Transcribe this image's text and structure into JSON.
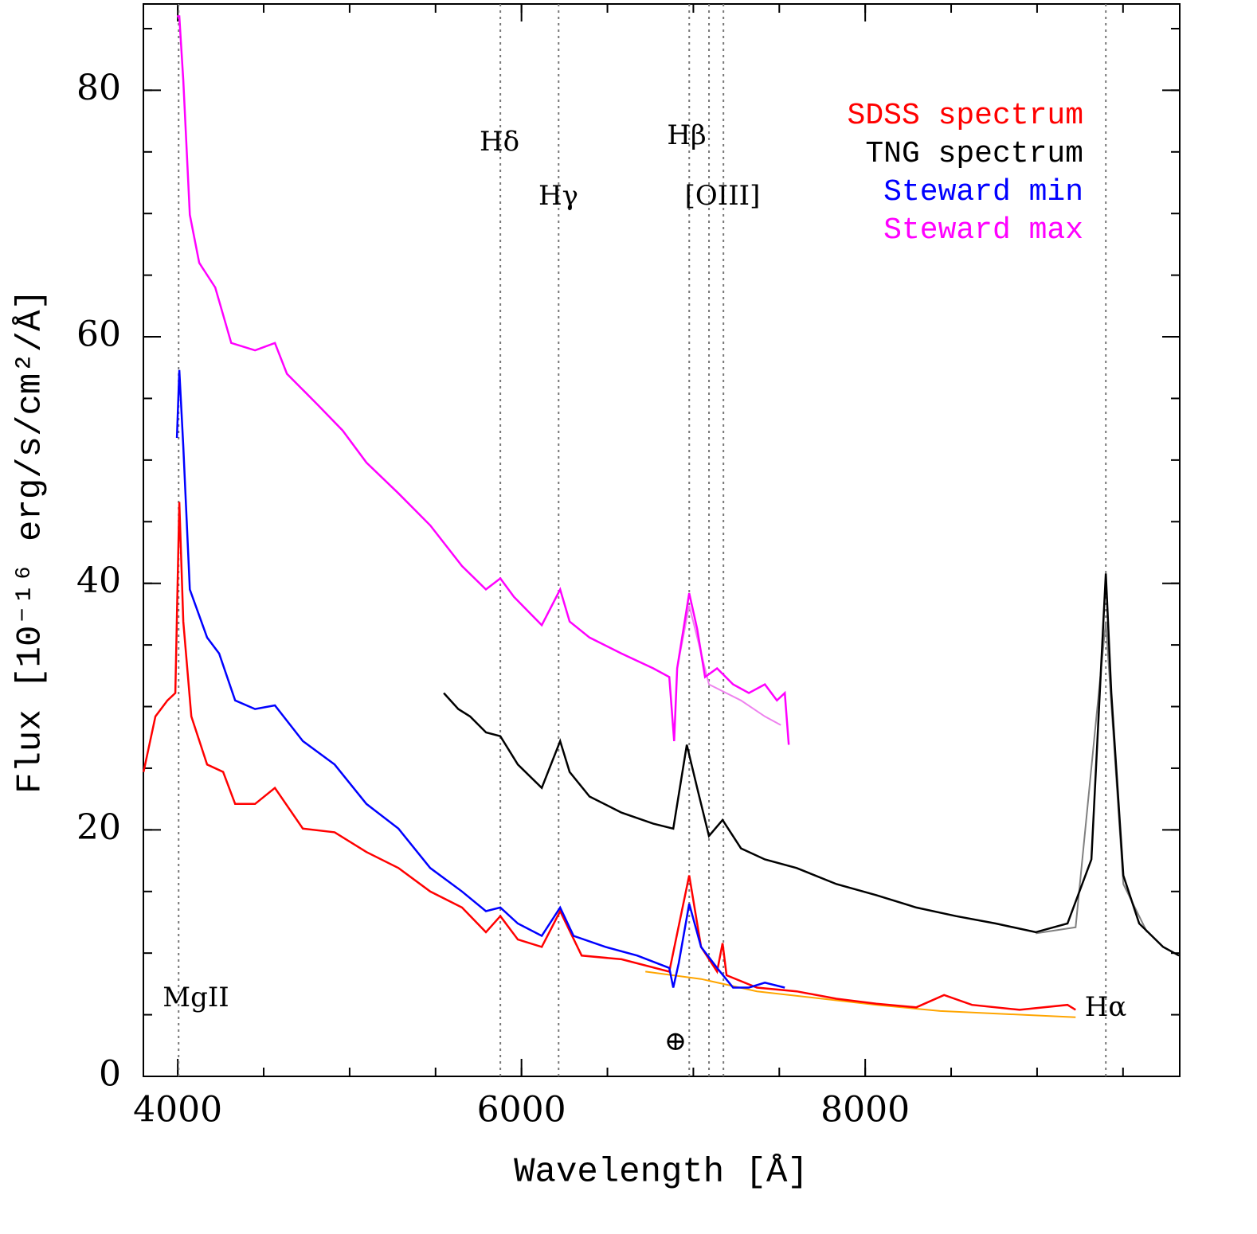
{
  "chart_data": {
    "type": "line",
    "xlabel": "Wavelength [Å]",
    "ylabel": "Flux [10⁻¹⁶ erg/s/cm²/Å]",
    "xlim": [
      3800,
      9830
    ],
    "ylim": [
      0,
      87
    ],
    "xticks": [
      4000,
      6000,
      8000
    ],
    "yticks": [
      0,
      20,
      40,
      60,
      80
    ],
    "minor_divisions": 4,
    "legend": "upper right",
    "series": [
      {
        "name": "SDSS spectrum",
        "color": "#ff0000",
        "x": [
          3801,
          3870,
          3940,
          3986,
          4009,
          4032,
          4079,
          4171,
          4264,
          4334,
          4450,
          4565,
          4728,
          4913,
          5098,
          5284,
          5469,
          5654,
          5793,
          5877,
          5979,
          6118,
          6225,
          6350,
          6582,
          6860,
          6976,
          7045,
          7138,
          7170,
          7193,
          7370,
          7601,
          7833,
          8065,
          8297,
          8459,
          8621,
          8899,
          9177,
          9224
        ],
        "values": [
          24.7,
          29.2,
          30.5,
          31.1,
          46.6,
          36.9,
          29.2,
          25.3,
          24.7,
          22.1,
          22.1,
          23.4,
          20.1,
          19.8,
          18.2,
          16.9,
          15.0,
          13.7,
          11.7,
          13.0,
          11.1,
          10.5,
          13.4,
          9.8,
          9.5,
          8.5,
          16.3,
          10.5,
          8.5,
          10.8,
          8.2,
          7.2,
          6.9,
          6.3,
          5.9,
          5.6,
          6.6,
          5.8,
          5.4,
          5.8,
          5.4
        ]
      },
      {
        "name": "TNG spectrum",
        "color": "#000000",
        "x": [
          5548,
          5632,
          5701,
          5794,
          5877,
          5979,
          6118,
          6225,
          6280,
          6396,
          6582,
          6767,
          6883,
          6962,
          7022,
          7091,
          7170,
          7277,
          7416,
          7601,
          7833,
          8065,
          8297,
          8528,
          8760,
          8992,
          9177,
          9316,
          9400,
          9432,
          9502,
          9594,
          9733,
          9826
        ],
        "values": [
          31.1,
          29.8,
          29.2,
          27.9,
          27.6,
          25.3,
          23.4,
          27.2,
          24.7,
          22.7,
          21.4,
          20.5,
          20.1,
          26.9,
          23.4,
          19.5,
          20.8,
          18.5,
          17.6,
          16.9,
          15.6,
          14.7,
          13.7,
          13.0,
          12.4,
          11.7,
          12.4,
          17.6,
          40.8,
          31.1,
          16.3,
          12.4,
          10.5,
          9.8
        ]
      },
      {
        "name": "Steward min",
        "color": "#0000ff",
        "x": [
          3995,
          4009,
          4032,
          4070,
          4171,
          4241,
          4334,
          4450,
          4565,
          4728,
          4913,
          5098,
          5284,
          5469,
          5654,
          5793,
          5877,
          5979,
          6118,
          6225,
          6303,
          6489,
          6674,
          6860,
          6883,
          6915,
          6976,
          7045,
          7138,
          7231,
          7323,
          7416,
          7532
        ],
        "values": [
          51.8,
          57.3,
          51.1,
          39.5,
          35.6,
          34.3,
          30.5,
          29.8,
          30.1,
          27.2,
          25.3,
          22.1,
          20.1,
          16.9,
          15.0,
          13.4,
          13.7,
          12.4,
          11.4,
          13.7,
          11.4,
          10.5,
          9.8,
          8.8,
          7.2,
          9.2,
          14.0,
          10.5,
          8.8,
          7.2,
          7.2,
          7.6,
          7.2
        ]
      },
      {
        "name": "Steward max",
        "color": "#ff00ff",
        "x": [
          3995,
          4009,
          4032,
          4070,
          4125,
          4218,
          4311,
          4450,
          4565,
          4635,
          4820,
          4959,
          5098,
          5284,
          5469,
          5654,
          5793,
          5877,
          5956,
          6118,
          6225,
          6280,
          6396,
          6582,
          6767,
          6860,
          6888,
          6906,
          6976,
          7022,
          7068,
          7138,
          7231,
          7323,
          7416,
          7486,
          7532,
          7555
        ],
        "values": [
          86,
          86,
          80.8,
          69.9,
          66,
          64,
          59.5,
          58.9,
          59.5,
          57,
          54.4,
          52.4,
          49.8,
          47.3,
          44.7,
          41.4,
          39.5,
          40.4,
          38.9,
          36.6,
          39.5,
          36.9,
          35.6,
          34.3,
          33.1,
          32.4,
          27.2,
          33.1,
          39.2,
          36.3,
          32.4,
          33.1,
          31.8,
          31.1,
          31.8,
          30.5,
          31.1,
          26.9
        ]
      },
      {
        "color": "#ffa500",
        "x": [
          6721,
          7045,
          7370,
          8065,
          8436,
          9224
        ],
        "values": [
          8.5,
          7.9,
          6.9,
          5.8,
          5.3,
          4.8
        ]
      },
      {
        "color": "#808080",
        "x": [
          8992,
          9224,
          9400,
          9502,
          9640
        ],
        "values": [
          11.6,
          12.1,
          36.9,
          15.6,
          11.7
        ]
      },
      {
        "color": "#ee82ee",
        "x": [
          6906,
          6976,
          7091,
          7277,
          7416,
          7509
        ],
        "values": [
          33.1,
          38.2,
          31.8,
          30.5,
          29.2,
          28.5
        ]
      }
    ],
    "reference_lines": [
      4005,
      5877,
      6216,
      6976,
      7091,
      7175,
      9400
    ],
    "annotations": [
      "MgII",
      "Hδ",
      "Hγ",
      "Hβ",
      "[OIII]",
      "⊕",
      "Hα"
    ]
  }
}
